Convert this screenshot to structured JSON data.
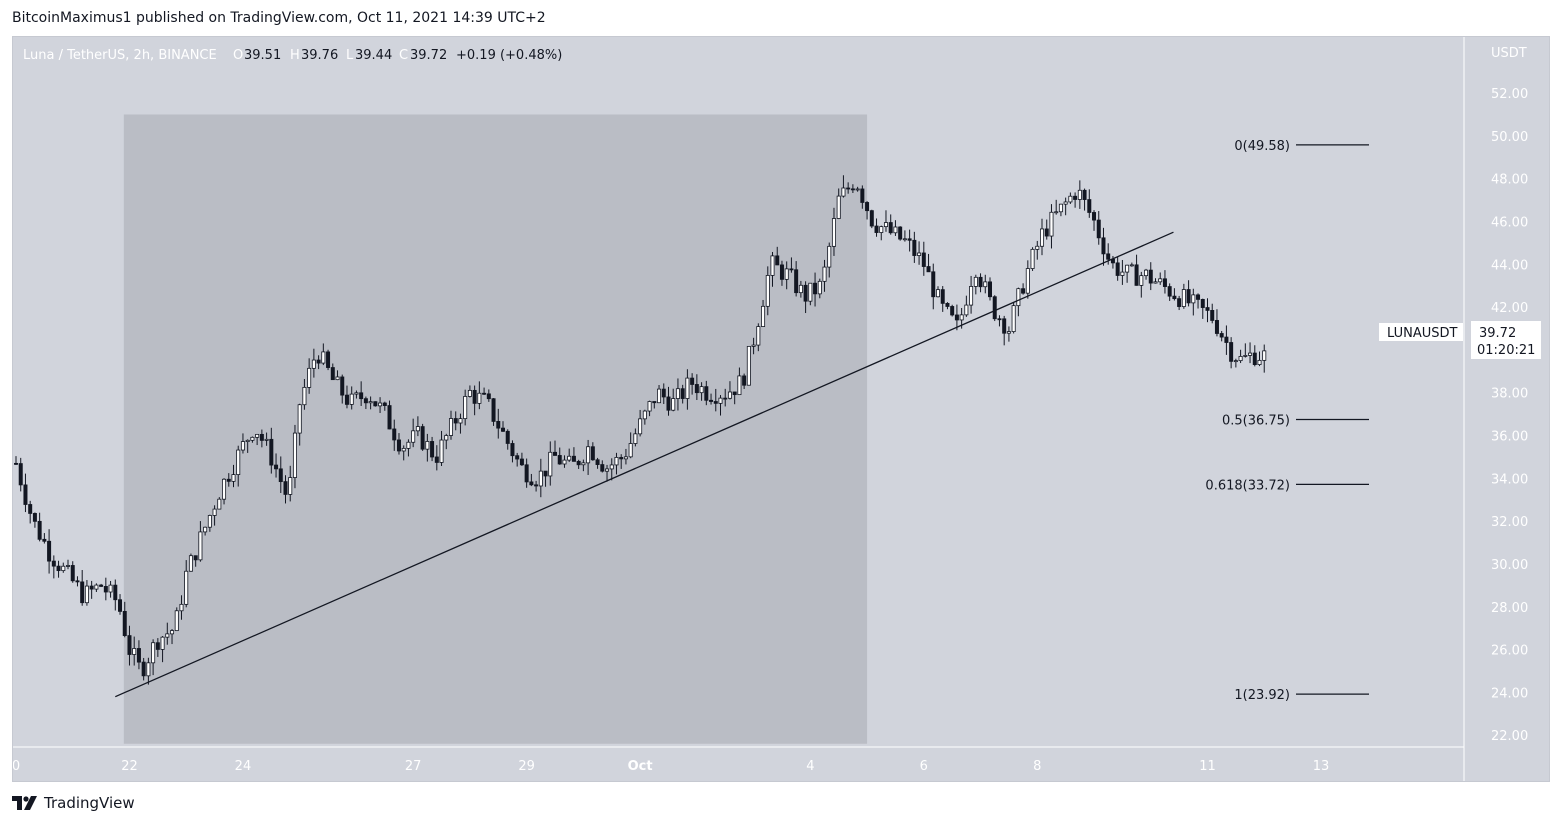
{
  "header": {
    "published": "BitcoinMaximus1 published on TradingView.com, Oct 11, 2021 14:39 UTC+2"
  },
  "legend": {
    "symbol": "Luna / TetherUS, 2h, BINANCE",
    "o_label": "O",
    "o_value": "39.51",
    "h_label": "H",
    "h_value": "39.76",
    "l_label": "L",
    "l_value": "39.44",
    "c_label": "C",
    "c_value": "39.72",
    "change": "+0.19 (+0.48%)"
  },
  "price_axis": {
    "unit": "USDT",
    "ticks": [
      "52.00",
      "50.00",
      "48.00",
      "46.00",
      "44.00",
      "42.00",
      "40.00",
      "38.00",
      "36.00",
      "34.00",
      "32.00",
      "30.00",
      "28.00",
      "26.00",
      "24.00",
      "22.00"
    ]
  },
  "time_axis": {
    "ticks": [
      "0",
      "22",
      "24",
      "27",
      "29",
      "Oct",
      "4",
      "6",
      "8",
      "11",
      "13"
    ]
  },
  "current_price": {
    "symbol": "LUNAUSDT",
    "price": "39.72",
    "countdown": "01:20:21"
  },
  "fib_levels": [
    {
      "label": "0(49.58)",
      "value": 49.58
    },
    {
      "label": "0.5(36.75)",
      "value": 36.75
    },
    {
      "label": "0.618(33.72)",
      "value": 33.72
    },
    {
      "label": "1(23.92)",
      "value": 23.92
    }
  ],
  "footer": {
    "brand": "TradingView"
  },
  "colors": {
    "background": "#d1d4dc",
    "shaded_region": "#babdc5",
    "candles": "#131722",
    "axis_text": "#ffffff"
  },
  "chart_data": {
    "type": "candlestick",
    "title": "Luna / TetherUS, 2h, BINANCE",
    "ylabel": "USDT",
    "ylim": [
      20.0,
      54.0
    ],
    "x_tick_labels": [
      "0",
      "22",
      "24",
      "27",
      "29",
      "Oct",
      "4",
      "6",
      "8",
      "11",
      "13"
    ],
    "x_tick_positions": [
      0,
      2,
      4,
      7,
      9,
      11,
      14,
      16,
      18,
      21,
      23
    ],
    "x_units": "days from 20 Sep 2021",
    "xlim": [
      0,
      24.5
    ],
    "shaded_region": {
      "x": [
        1.9,
        15.0
      ],
      "y": [
        21.6,
        51.0
      ]
    },
    "trendline": {
      "points": [
        [
          1.75,
          23.8
        ],
        [
          20.4,
          45.5
        ]
      ]
    },
    "fibonacci": [
      {
        "ratio": "0",
        "price": 49.58
      },
      {
        "ratio": "0.5",
        "price": 36.75
      },
      {
        "ratio": "0.618",
        "price": 33.72
      },
      {
        "ratio": "1",
        "price": 23.92
      }
    ],
    "close_path": [
      [
        0.0,
        34.7
      ],
      [
        0.3,
        32.0
      ],
      [
        0.6,
        30.5
      ],
      [
        0.9,
        29.5
      ],
      [
        1.2,
        28.5
      ],
      [
        1.5,
        29.0
      ],
      [
        1.8,
        28.2
      ],
      [
        2.0,
        26.0
      ],
      [
        2.2,
        25.0
      ],
      [
        2.5,
        26.5
      ],
      [
        2.8,
        27.0
      ],
      [
        3.0,
        29.5
      ],
      [
        3.3,
        31.5
      ],
      [
        3.6,
        33.5
      ],
      [
        3.9,
        35.0
      ],
      [
        4.2,
        36.5
      ],
      [
        4.5,
        35.0
      ],
      [
        4.8,
        33.0
      ],
      [
        5.0,
        37.5
      ],
      [
        5.3,
        40.0
      ],
      [
        5.6,
        38.5
      ],
      [
        5.9,
        37.5
      ],
      [
        6.2,
        38.0
      ],
      [
        6.5,
        37.0
      ],
      [
        6.8,
        35.5
      ],
      [
        7.1,
        36.0
      ],
      [
        7.4,
        35.0
      ],
      [
        7.7,
        36.5
      ],
      [
        8.0,
        38.0
      ],
      [
        8.3,
        37.5
      ],
      [
        8.6,
        36.0
      ],
      [
        8.9,
        34.5
      ],
      [
        9.2,
        34.0
      ],
      [
        9.5,
        35.0
      ],
      [
        9.8,
        34.5
      ],
      [
        10.1,
        35.5
      ],
      [
        10.4,
        34.5
      ],
      [
        10.7,
        35.0
      ],
      [
        11.0,
        36.5
      ],
      [
        11.3,
        38.0
      ],
      [
        11.6,
        37.5
      ],
      [
        11.9,
        38.5
      ],
      [
        12.2,
        38.0
      ],
      [
        12.5,
        38.0
      ],
      [
        12.8,
        38.5
      ],
      [
        13.0,
        40.5
      ],
      [
        13.3,
        44.0
      ],
      [
        13.6,
        43.5
      ],
      [
        13.9,
        42.5
      ],
      [
        14.2,
        43.0
      ],
      [
        14.5,
        47.0
      ],
      [
        14.8,
        48.0
      ],
      [
        15.1,
        46.0
      ],
      [
        15.4,
        45.5
      ],
      [
        15.7,
        45.0
      ],
      [
        16.0,
        44.0
      ],
      [
        16.3,
        42.0
      ],
      [
        16.6,
        41.0
      ],
      [
        16.9,
        44.0
      ],
      [
        17.2,
        42.0
      ],
      [
        17.5,
        41.0
      ],
      [
        17.8,
        43.5
      ],
      [
        18.1,
        45.5
      ],
      [
        18.4,
        46.5
      ],
      [
        18.7,
        47.5
      ],
      [
        19.0,
        46.0
      ],
      [
        19.3,
        44.0
      ],
      [
        19.6,
        43.5
      ],
      [
        19.9,
        43.5
      ],
      [
        20.2,
        43.0
      ],
      [
        20.5,
        42.5
      ],
      [
        20.8,
        42.0
      ],
      [
        21.1,
        41.5
      ],
      [
        21.4,
        40.0
      ],
      [
        21.6,
        39.5
      ],
      [
        21.8,
        39.8
      ],
      [
        22.0,
        39.72
      ]
    ]
  }
}
